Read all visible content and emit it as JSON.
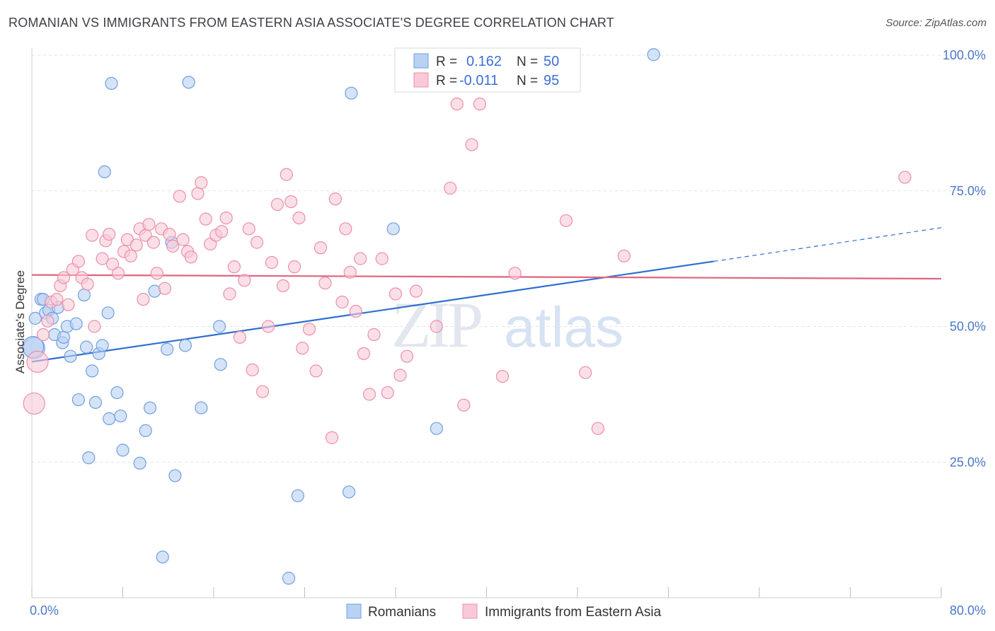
{
  "header": {
    "title": "ROMANIAN VS IMMIGRANTS FROM EASTERN ASIA ASSOCIATE'S DEGREE CORRELATION CHART",
    "source": "Source: ZipAtlas.com"
  },
  "watermark": {
    "zip": "ZIP",
    "atlas": "atlas"
  },
  "legend_box": [
    {
      "r_label": "R =",
      "r_value": "0.162",
      "n_label": "N =",
      "n_value": "50",
      "color": "#aac7f0"
    },
    {
      "r_label": "R =",
      "r_value": "-0.011",
      "n_label": "N =",
      "n_value": "95",
      "color": "#f5b8cb"
    }
  ],
  "chart_data": {
    "type": "scatter",
    "title": "ROMANIAN VS IMMIGRANTS FROM EASTERN ASIA ASSOCIATE'S DEGREE CORRELATION CHART",
    "xlabel": "",
    "ylabel": "Associate's Degree",
    "xlim": [
      0,
      80
    ],
    "ylim": [
      0,
      101
    ],
    "x_tick_labels": [
      "0.0%",
      "80.0%"
    ],
    "y_tick_labels": [
      "25.0%",
      "50.0%",
      "75.0%",
      "100.0%"
    ],
    "y_ticks": [
      25,
      50,
      75,
      100
    ],
    "grid": true,
    "legend_position": "bottom-center",
    "series": [
      {
        "name": "Romanians",
        "color": "#6fa0e0",
        "fill": "#b9d1f3",
        "trend": {
          "x": [
            0,
            60
          ],
          "y": [
            43.5,
            62.0
          ],
          "dashed_to": [
            80,
            68.2
          ],
          "color": "#2f6fd0"
        },
        "points": [
          [
            0.2,
            46.0
          ],
          [
            0.3,
            51.5
          ],
          [
            0.8,
            55.0
          ],
          [
            1.2,
            52.5
          ],
          [
            1.5,
            53.0
          ],
          [
            1.8,
            51.5
          ],
          [
            2.0,
            48.5
          ],
          [
            2.3,
            53.5
          ],
          [
            2.7,
            47.0
          ],
          [
            2.8,
            48.0
          ],
          [
            3.1,
            50.0
          ],
          [
            3.4,
            44.5
          ],
          [
            3.9,
            50.5
          ],
          [
            4.1,
            36.5
          ],
          [
            4.6,
            55.8
          ],
          [
            4.8,
            46.2
          ],
          [
            5.0,
            25.8
          ],
          [
            5.3,
            41.8
          ],
          [
            5.6,
            36.0
          ],
          [
            5.9,
            45.0
          ],
          [
            6.2,
            46.5
          ],
          [
            6.4,
            78.5
          ],
          [
            6.7,
            52.5
          ],
          [
            6.8,
            33.0
          ],
          [
            7.0,
            94.8
          ],
          [
            7.5,
            37.8
          ],
          [
            7.8,
            33.5
          ],
          [
            8.0,
            27.2
          ],
          [
            9.5,
            24.8
          ],
          [
            10.0,
            30.8
          ],
          [
            10.4,
            35.0
          ],
          [
            10.8,
            56.5
          ],
          [
            11.5,
            7.5
          ],
          [
            11.9,
            45.8
          ],
          [
            12.3,
            65.5
          ],
          [
            12.6,
            22.5
          ],
          [
            13.5,
            46.5
          ],
          [
            13.8,
            95.0
          ],
          [
            14.9,
            35.0
          ],
          [
            16.5,
            50.0
          ],
          [
            16.6,
            43.0
          ],
          [
            22.6,
            3.6
          ],
          [
            23.4,
            18.8
          ],
          [
            27.9,
            19.5
          ],
          [
            28.1,
            93.0
          ],
          [
            31.8,
            68.0
          ],
          [
            35.6,
            31.2
          ],
          [
            54.7,
            100.1
          ],
          [
            0.1,
            46.2
          ],
          [
            1.0,
            55.0
          ]
        ]
      },
      {
        "name": "Immigrants from Eastern Asia",
        "color": "#ec8fab",
        "fill": "#f9c9d7",
        "trend": {
          "x": [
            0,
            80
          ],
          "y": [
            59.5,
            58.8
          ],
          "color": "#e0637f"
        },
        "points": [
          [
            0.2,
            35.8
          ],
          [
            0.5,
            43.5
          ],
          [
            1.0,
            48.5
          ],
          [
            1.4,
            51.0
          ],
          [
            1.7,
            54.5
          ],
          [
            2.2,
            55.0
          ],
          [
            2.5,
            57.5
          ],
          [
            2.8,
            59.0
          ],
          [
            3.2,
            54.0
          ],
          [
            3.6,
            60.5
          ],
          [
            4.1,
            62.0
          ],
          [
            4.4,
            59.0
          ],
          [
            4.9,
            57.8
          ],
          [
            5.3,
            66.8
          ],
          [
            5.5,
            50.0
          ],
          [
            6.2,
            62.5
          ],
          [
            6.5,
            65.8
          ],
          [
            6.8,
            67.0
          ],
          [
            7.1,
            61.5
          ],
          [
            7.6,
            59.8
          ],
          [
            8.1,
            63.8
          ],
          [
            8.4,
            66.0
          ],
          [
            8.7,
            63.0
          ],
          [
            9.2,
            65.0
          ],
          [
            9.5,
            68.0
          ],
          [
            9.8,
            55.0
          ],
          [
            10.0,
            66.8
          ],
          [
            10.3,
            68.8
          ],
          [
            10.7,
            65.5
          ],
          [
            11.0,
            59.8
          ],
          [
            11.4,
            68.0
          ],
          [
            11.7,
            57.0
          ],
          [
            12.1,
            67.0
          ],
          [
            12.4,
            64.8
          ],
          [
            13.0,
            74.0
          ],
          [
            13.3,
            66.0
          ],
          [
            13.7,
            63.8
          ],
          [
            14.0,
            62.8
          ],
          [
            14.6,
            74.5
          ],
          [
            14.9,
            76.5
          ],
          [
            15.3,
            69.8
          ],
          [
            15.7,
            65.2
          ],
          [
            16.2,
            66.8
          ],
          [
            16.7,
            67.5
          ],
          [
            17.1,
            70.0
          ],
          [
            17.4,
            56.0
          ],
          [
            17.8,
            61.0
          ],
          [
            18.3,
            48.0
          ],
          [
            18.7,
            58.5
          ],
          [
            19.1,
            68.0
          ],
          [
            19.4,
            42.0
          ],
          [
            19.8,
            65.5
          ],
          [
            20.3,
            38.0
          ],
          [
            20.8,
            50.0
          ],
          [
            21.1,
            61.8
          ],
          [
            21.6,
            72.5
          ],
          [
            22.1,
            57.5
          ],
          [
            22.4,
            78.0
          ],
          [
            22.8,
            73.0
          ],
          [
            23.1,
            61.0
          ],
          [
            23.5,
            70.0
          ],
          [
            23.8,
            46.0
          ],
          [
            24.4,
            49.5
          ],
          [
            25.0,
            41.8
          ],
          [
            25.4,
            64.5
          ],
          [
            25.8,
            58.0
          ],
          [
            26.4,
            29.5
          ],
          [
            26.7,
            73.5
          ],
          [
            27.3,
            54.5
          ],
          [
            27.6,
            68.0
          ],
          [
            28.0,
            60.0
          ],
          [
            28.5,
            52.8
          ],
          [
            28.9,
            62.5
          ],
          [
            29.2,
            45.0
          ],
          [
            29.7,
            37.5
          ],
          [
            30.1,
            48.5
          ],
          [
            30.8,
            62.5
          ],
          [
            31.3,
            37.8
          ],
          [
            32.0,
            56.0
          ],
          [
            32.4,
            41.0
          ],
          [
            33.0,
            44.5
          ],
          [
            33.8,
            56.5
          ],
          [
            35.6,
            50.0
          ],
          [
            36.8,
            75.5
          ],
          [
            37.4,
            91.0
          ],
          [
            38.0,
            35.5
          ],
          [
            38.7,
            83.5
          ],
          [
            39.4,
            91.0
          ],
          [
            41.4,
            40.8
          ],
          [
            42.5,
            59.8
          ],
          [
            47.0,
            69.5
          ],
          [
            48.7,
            41.5
          ],
          [
            49.8,
            31.2
          ],
          [
            52.1,
            63.0
          ],
          [
            76.8,
            77.5
          ]
        ]
      }
    ]
  },
  "bottom_legend": [
    {
      "label": "Romanians"
    },
    {
      "label": "Immigrants from Eastern Asia"
    }
  ]
}
